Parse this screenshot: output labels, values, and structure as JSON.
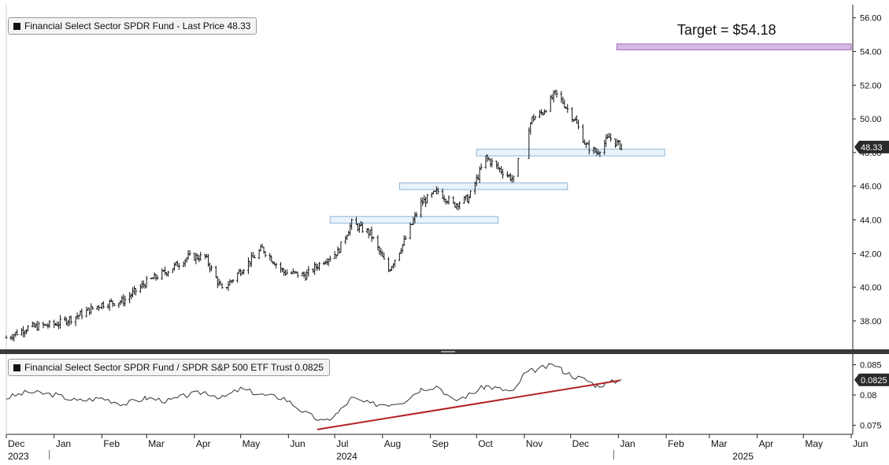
{
  "chart_data": [
    {
      "type": "candlestick",
      "legend": "Financial Select Sector SPDR Fund - Last Price 48.33",
      "last_price_label": "48.33",
      "annotation": "Target = $54.18",
      "target_value": 54.18,
      "ylim": [
        36.5,
        56.5
      ],
      "yticks": [
        "56.00",
        "54.00",
        "52.00",
        "50.00",
        "48.00",
        "46.00",
        "44.00",
        "42.00",
        "40.00",
        "38.00"
      ],
      "ytick_values": [
        56,
        54,
        52,
        50,
        48,
        46,
        44,
        42,
        40,
        38
      ],
      "support_zones": [
        {
          "start": "2024-06-28",
          "end": "2024-10-15",
          "low": 43.8,
          "high": 44.2
        },
        {
          "start": "2024-08-12",
          "end": "2024-11-29",
          "low": 45.8,
          "high": 46.2
        },
        {
          "start": "2024-10-01",
          "end": "2025-01-31",
          "low": 47.8,
          "high": 48.2
        }
      ],
      "target_zone": {
        "start": "2024-12-31",
        "end": "2025-06-01",
        "low": 54.1,
        "high": 54.45
      },
      "x_start": "2023-12-01",
      "x_end": "2025-06-02",
      "x": [
        "2023-12-01",
        "2023-12-15",
        "2024-01-02",
        "2024-01-16",
        "2024-02-01",
        "2024-02-15",
        "2024-03-01",
        "2024-03-15",
        "2024-03-28",
        "2024-04-08",
        "2024-04-19",
        "2024-05-01",
        "2024-05-15",
        "2024-05-29",
        "2024-06-12",
        "2024-06-24",
        "2024-07-03",
        "2024-07-12",
        "2024-07-24",
        "2024-08-05",
        "2024-08-15",
        "2024-08-26",
        "2024-09-06",
        "2024-09-16",
        "2024-09-26",
        "2024-10-07",
        "2024-10-16",
        "2024-10-25",
        "2024-11-01",
        "2024-11-06",
        "2024-11-13",
        "2024-11-21",
        "2024-11-26",
        "2024-12-04",
        "2024-12-11",
        "2024-12-18",
        "2024-12-26",
        "2025-01-03"
      ],
      "close": [
        37.0,
        37.6,
        37.8,
        38.3,
        39.0,
        39.2,
        40.3,
        41.0,
        41.8,
        41.8,
        39.8,
        41.0,
        42.3,
        40.9,
        40.7,
        41.6,
        42.1,
        43.8,
        43.2,
        41.0,
        42.7,
        45.0,
        45.7,
        44.9,
        45.3,
        47.7,
        47.0,
        46.4,
        48.8,
        50.0,
        50.4,
        51.5,
        51.0,
        49.9,
        48.4,
        48.0,
        48.9,
        48.33
      ]
    },
    {
      "type": "line",
      "legend": "Financial Select Sector SPDR Fund / SPDR S&P 500 ETF Trust 0.0825",
      "last_value_label": "0.0825",
      "ylim": [
        0.0735,
        0.0865
      ],
      "yticks": [
        "0.085",
        "0.08",
        "0.075"
      ],
      "ytick_values": [
        0.085,
        0.08,
        0.075
      ],
      "x": [
        "2023-12-01",
        "2023-12-15",
        "2024-01-02",
        "2024-01-16",
        "2024-02-01",
        "2024-02-15",
        "2024-03-01",
        "2024-03-15",
        "2024-03-28",
        "2024-04-08",
        "2024-04-19",
        "2024-05-01",
        "2024-05-15",
        "2024-05-29",
        "2024-06-12",
        "2024-06-24",
        "2024-07-03",
        "2024-07-12",
        "2024-07-24",
        "2024-08-05",
        "2024-08-15",
        "2024-08-26",
        "2024-09-06",
        "2024-09-16",
        "2024-09-26",
        "2024-10-07",
        "2024-10-16",
        "2024-10-25",
        "2024-11-01",
        "2024-11-06",
        "2024-11-13",
        "2024-11-21",
        "2024-11-26",
        "2024-12-04",
        "2024-12-11",
        "2024-12-18",
        "2024-12-26",
        "2025-01-03"
      ],
      "values": [
        0.0795,
        0.0805,
        0.08,
        0.079,
        0.0795,
        0.0785,
        0.0795,
        0.079,
        0.08,
        0.0805,
        0.0795,
        0.081,
        0.08,
        0.0795,
        0.077,
        0.0755,
        0.077,
        0.0795,
        0.0785,
        0.0785,
        0.079,
        0.081,
        0.0815,
        0.079,
        0.08,
        0.0815,
        0.081,
        0.0805,
        0.0835,
        0.084,
        0.0845,
        0.085,
        0.084,
        0.083,
        0.0825,
        0.0815,
        0.082,
        0.0825
      ],
      "trendline": {
        "start": "2024-06-12",
        "end": "2025-01-03",
        "from": 0.0743,
        "to": 0.0824
      }
    }
  ],
  "x_axis": {
    "month_labels": [
      "Dec",
      "Jan",
      "Feb",
      "Mar",
      "Apr",
      "May",
      "Jun",
      "Jul",
      "Aug",
      "Sep",
      "Oct",
      "Nov",
      "Dec",
      "Jan",
      "Feb",
      "Mar",
      "Apr",
      "May",
      "Jun"
    ],
    "month_dates": [
      "2023-12-01",
      "2024-01-01",
      "2024-02-01",
      "2024-03-01",
      "2024-04-01",
      "2024-05-01",
      "2024-06-01",
      "2024-07-01",
      "2024-08-01",
      "2024-09-01",
      "2024-10-01",
      "2024-11-01",
      "2024-12-01",
      "2025-01-01",
      "2025-02-01",
      "2025-03-01",
      "2025-04-01",
      "2025-05-01",
      "2025-06-01"
    ],
    "years": [
      {
        "label": "2023",
        "date": "2023-12-01"
      },
      {
        "label": "2024",
        "date": "2024-07-01"
      },
      {
        "label": "2025",
        "date": "2025-03-15"
      }
    ]
  },
  "colors": {
    "candles": "#111111",
    "support_fill": "#e8f3fb",
    "support_stroke": "#8fb4d4",
    "target_fill": "#d7b8e6",
    "target_stroke": "#9c6bb5",
    "ratio_line": "#333333",
    "trendline": "#b22222",
    "badge": "#2a2a2a",
    "separator": "#3a3a3a"
  }
}
